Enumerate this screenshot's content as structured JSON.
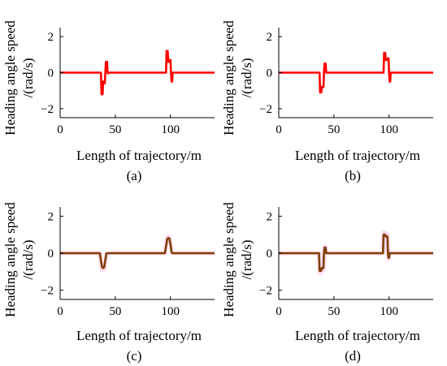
{
  "chart_data": [
    {
      "type": "line",
      "caption": "(a)",
      "xlabel": "Length of trajectory/m",
      "ylabel_line1": "Heading angle speed",
      "ylabel_line2": "/(rad/s)",
      "xlim": [
        0,
        140
      ],
      "ylim": [
        -2.5,
        2.5
      ],
      "xticks": [
        0,
        50,
        100
      ],
      "yticks": [
        2,
        0,
        -2
      ],
      "grid": false,
      "legend": "none",
      "series": [
        {
          "color": "#ff0000",
          "x": [
            0,
            37,
            37.5,
            38.5,
            39,
            40,
            40.5,
            41,
            41.5,
            42.5,
            43,
            43.5,
            44,
            60,
            96,
            96.5,
            97.5,
            98,
            99,
            99.5,
            100,
            100.5,
            101,
            101.5,
            102,
            140
          ],
          "y": [
            0,
            0,
            -1.2,
            -1.2,
            -0.5,
            -0.5,
            -0.6,
            0,
            0.6,
            0.6,
            0,
            -0.05,
            0,
            0,
            0,
            1.2,
            1.2,
            0.6,
            0.6,
            0.7,
            0.7,
            0,
            -0.5,
            -0.5,
            0,
            0
          ]
        }
      ]
    },
    {
      "type": "line",
      "caption": "(b)",
      "xlabel": "Length of trajectory/m",
      "ylabel_line1": "Heading angle speed",
      "ylabel_line2": "/(rad/s)",
      "xlim": [
        0,
        140
      ],
      "ylim": [
        -2.5,
        2.5
      ],
      "xticks": [
        0,
        50,
        100
      ],
      "yticks": [
        2,
        0,
        -2
      ],
      "grid": false,
      "legend": "none",
      "series": [
        {
          "color": "#ff0000",
          "x": [
            0,
            37,
            37.5,
            38.5,
            39,
            40.5,
            41,
            41.5,
            42.5,
            43,
            44,
            60,
            95,
            95.5,
            96.5,
            97,
            98.5,
            99,
            99.5,
            100,
            100.5,
            101,
            101.5,
            102,
            140
          ],
          "y": [
            0,
            0,
            -1.1,
            -1.1,
            -0.8,
            -0.8,
            0,
            0.5,
            0.5,
            0,
            0,
            0,
            0,
            1.1,
            1.1,
            0.7,
            0.7,
            0.8,
            0.8,
            0,
            -0.5,
            -0.5,
            0,
            0,
            0
          ]
        }
      ]
    },
    {
      "type": "line",
      "caption": "(c)",
      "xlabel": "Length of trajectory/m",
      "ylabel_line1": "Heading angle speed",
      "ylabel_line2": "/(rad/s)",
      "xlim": [
        0,
        140
      ],
      "ylim": [
        -2.5,
        2.5
      ],
      "xticks": [
        0,
        50,
        100
      ],
      "yticks": [
        2,
        0,
        -2
      ],
      "grid": false,
      "legend": "none",
      "series": [
        {
          "color": "#804000",
          "x": [
            0,
            36,
            37,
            38,
            39,
            40,
            41,
            42,
            50,
            55,
            95,
            96,
            97,
            98,
            99,
            100,
            101,
            102,
            140
          ],
          "y": [
            0,
            0,
            -0.4,
            -0.75,
            -0.8,
            -0.75,
            -0.35,
            0,
            0,
            0,
            0,
            0.35,
            0.75,
            0.82,
            0.8,
            0.5,
            0.05,
            0,
            0
          ]
        },
        {
          "color": "#ffd6f5",
          "x": [
            0,
            36,
            37,
            38,
            39,
            40,
            41,
            42,
            45,
            50,
            55,
            95,
            96,
            97,
            98,
            99,
            100,
            101,
            102,
            140
          ],
          "y": [
            0,
            0,
            -0.5,
            -0.85,
            -0.9,
            -0.85,
            -0.45,
            -0.05,
            0,
            0.03,
            0,
            0,
            0.45,
            0.85,
            0.9,
            0.88,
            0.55,
            0.1,
            0,
            0
          ]
        }
      ]
    },
    {
      "type": "line",
      "caption": "(d)",
      "xlabel": "Length of trajectory/m",
      "ylabel_line1": "Heading angle speed",
      "ylabel_line2": "/(rad/s)",
      "xlim": [
        0,
        140
      ],
      "ylim": [
        -2.5,
        2.5
      ],
      "xticks": [
        0,
        50,
        100
      ],
      "yticks": [
        2,
        0,
        -2
      ],
      "grid": false,
      "legend": "none",
      "series": [
        {
          "color": "#804000",
          "x": [
            0,
            36.5,
            37,
            38.5,
            39,
            40.5,
            41,
            41.5,
            42.5,
            43,
            50,
            94.5,
            95,
            96.5,
            97,
            98.5,
            99,
            99.5,
            100,
            100.5,
            101,
            102,
            140
          ],
          "y": [
            0,
            0,
            -0.95,
            -0.95,
            -0.8,
            -0.8,
            0,
            0.3,
            0.3,
            0,
            0,
            0,
            1.0,
            1.0,
            0.9,
            0.9,
            0,
            -0.25,
            -0.25,
            0,
            0,
            0,
            0
          ]
        },
        {
          "color": "#ffd6f5",
          "x": [
            0,
            36.5,
            37,
            38.5,
            39,
            40.5,
            41,
            41.5,
            42.5,
            43,
            50,
            94.5,
            95,
            96.5,
            97,
            98.5,
            99,
            99.5,
            100,
            100.5,
            101,
            102,
            140
          ],
          "y": [
            0,
            0,
            -1.05,
            -1.05,
            -0.9,
            -0.9,
            0,
            0.35,
            0.35,
            0,
            0,
            0,
            1.1,
            1.1,
            1.0,
            1.0,
            0,
            -0.3,
            -0.3,
            0,
            0,
            0,
            0
          ]
        }
      ]
    }
  ]
}
